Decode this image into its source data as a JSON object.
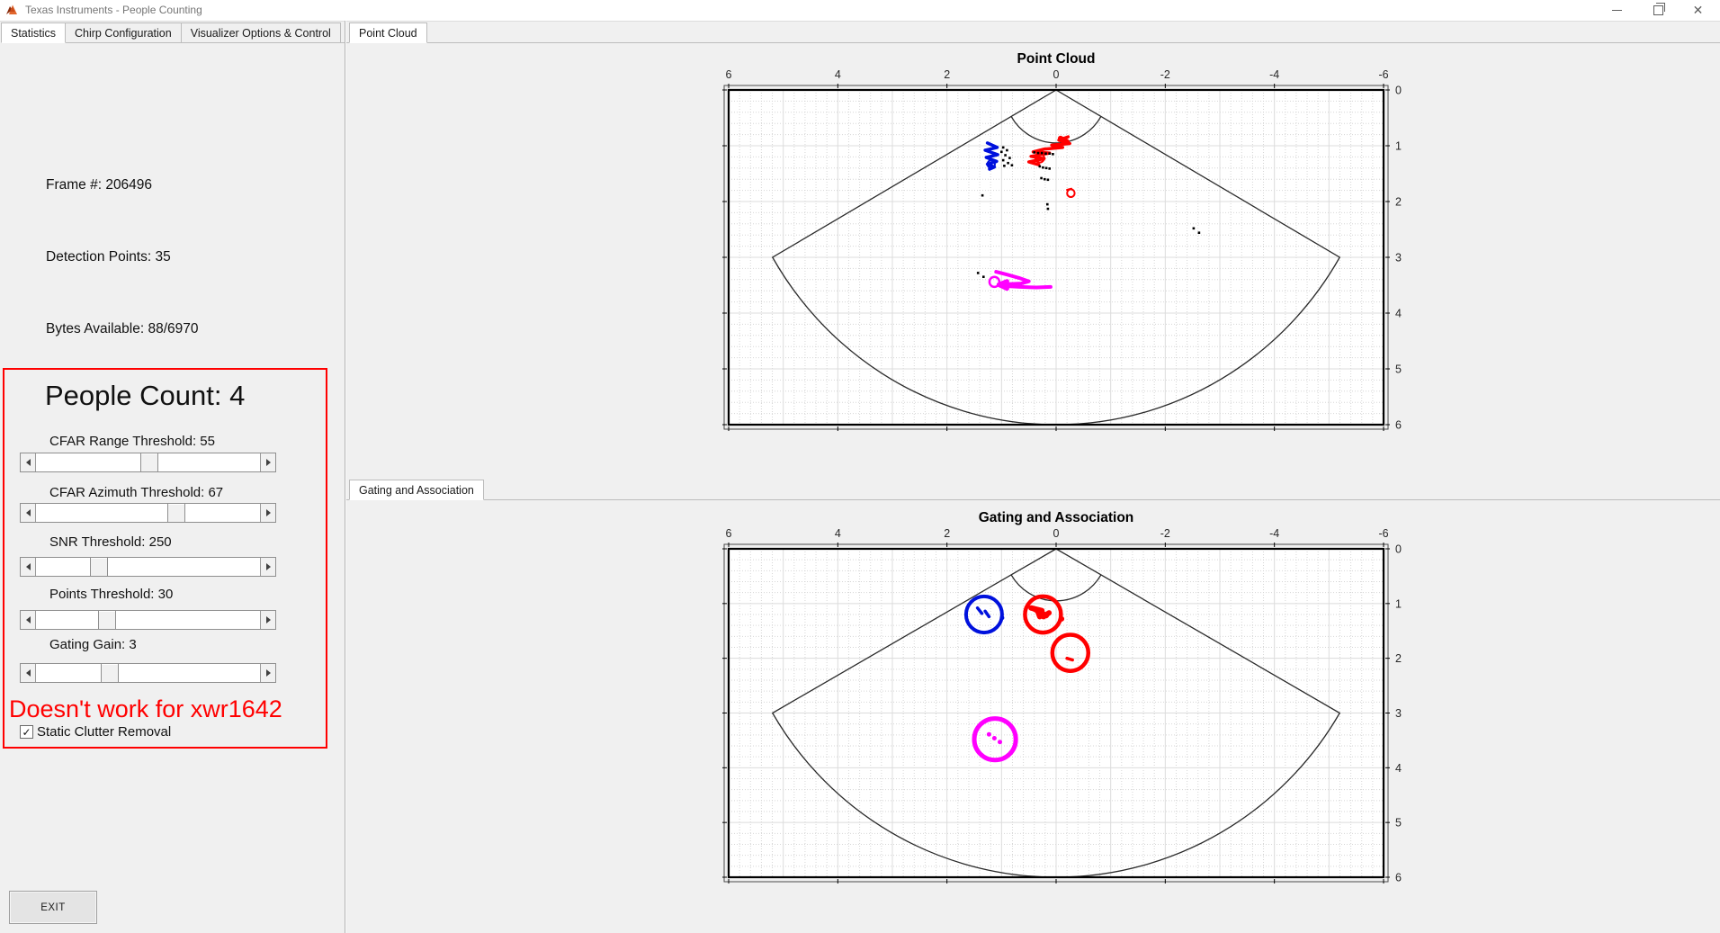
{
  "window": {
    "title": "Texas Instruments - People Counting",
    "icon": "matlab-logo-icon"
  },
  "left_panel": {
    "tabs": [
      {
        "label": "Statistics",
        "active": true
      },
      {
        "label": "Chirp Configuration",
        "active": false
      },
      {
        "label": "Visualizer Options & Control",
        "active": false
      }
    ],
    "stats": {
      "frame": "Frame #: 206496",
      "detections": "Detection Points: 35",
      "bytes": "Bytes Available: 88/6970"
    },
    "people_count": "People Count: 4",
    "sliders": [
      {
        "label": "CFAR Range Threshold: 55",
        "value": 55,
        "fraction": 0.5
      },
      {
        "label": "CFAR Azimuth Threshold: 67",
        "value": 67,
        "fraction": 0.63
      },
      {
        "label": "SNR Threshold: 250",
        "value": 250,
        "fraction": 0.26
      },
      {
        "label": "Points Threshold: 30",
        "value": 30,
        "fraction": 0.3
      },
      {
        "label": "Gating Gain: 3",
        "value": 3,
        "fraction": 0.31
      }
    ],
    "warning": "Doesn't work for xwr1642",
    "checkbox": {
      "label": "Static Clutter Removal",
      "checked": true,
      "glyph": "✓"
    },
    "exit_label": "EXIT"
  },
  "right_panel": {
    "top_tab": "Point Cloud",
    "bottom_tab": "Gating and Association"
  },
  "colors": {
    "track_blue": "#0011DD",
    "track_red": "#FF0000",
    "track_magenta": "#FF00FF",
    "detections": "#000000",
    "warning_red": "#FF0000",
    "grid_major": "#dcdcdc",
    "grid_minor": "#d6d6d6",
    "wedge": "#2b2b2b"
  },
  "chart_data": [
    {
      "type": "scatter",
      "title": "Point Cloud",
      "xlabel": "",
      "ylabel": "",
      "xlim": [
        6,
        -6
      ],
      "ylim": [
        0,
        6
      ],
      "x_ticks": [
        6,
        4,
        2,
        0,
        -2,
        -4,
        -6
      ],
      "y_ticks": [
        0,
        1,
        2,
        3,
        4,
        5,
        6
      ],
      "grid": "major+minor",
      "minor_step": 0.2,
      "fov_deg": 120,
      "range_max_m": 6,
      "near_arc_m": 0.95,
      "series": [
        {
          "name": "blue-track-trail",
          "kind": "trail",
          "color": "#0011DD",
          "width": 3.5,
          "points": [
            [
              1.26,
              0.95
            ],
            [
              1.08,
              1.03
            ],
            [
              1.3,
              1.08
            ],
            [
              1.07,
              1.16
            ],
            [
              1.28,
              1.21
            ],
            [
              1.09,
              1.28
            ],
            [
              1.26,
              1.33
            ],
            [
              1.13,
              1.38
            ],
            [
              1.22,
              1.42
            ]
          ]
        },
        {
          "name": "blue-track-ring",
          "kind": "ring",
          "color": "#0011DD",
          "width": 2,
          "center": [
            1.19,
            1.33
          ],
          "r": 0.07
        },
        {
          "name": "red-track-trail",
          "kind": "trail",
          "color": "#FF0000",
          "width": 3.5,
          "points": [
            [
              -0.22,
              0.84
            ],
            [
              -0.05,
              0.9
            ],
            [
              -0.25,
              0.96
            ],
            [
              0.08,
              0.99
            ],
            [
              -0.12,
              1.03
            ],
            [
              0.22,
              1.06
            ],
            [
              0.42,
              1.11
            ],
            [
              0.12,
              1.13
            ],
            [
              0.46,
              1.19
            ],
            [
              0.22,
              1.23
            ],
            [
              0.5,
              1.29
            ],
            [
              0.32,
              1.34
            ]
          ]
        },
        {
          "name": "red-track-flag",
          "kind": "trail",
          "color": "#FF0000",
          "width": 6,
          "points": [
            [
              -0.08,
              0.87
            ],
            [
              -0.2,
              0.93
            ]
          ]
        },
        {
          "name": "red-track-ring",
          "kind": "ring",
          "color": "#FF0000",
          "width": 2,
          "center": [
            0.3,
            1.22
          ],
          "r": 0.08
        },
        {
          "name": "red-lone-marker",
          "kind": "ring",
          "color": "#FF0000",
          "width": 2,
          "center": [
            -0.27,
            1.85
          ],
          "r": 0.07,
          "dashes": [
            [
              -0.2,
              1.79,
              -0.28,
              1.77
            ]
          ],
          "dash_width": 2
        },
        {
          "name": "magenta-track-trail",
          "kind": "trail",
          "color": "#FF00FF",
          "width": 4,
          "points": [
            [
              1.1,
              3.26
            ],
            [
              0.9,
              3.31
            ],
            [
              0.68,
              3.37
            ],
            [
              0.5,
              3.43
            ],
            [
              0.64,
              3.47
            ],
            [
              0.88,
              3.48
            ],
            [
              1.03,
              3.51
            ],
            [
              0.66,
              3.53
            ],
            [
              0.36,
              3.54
            ],
            [
              0.1,
              3.53
            ]
          ]
        },
        {
          "name": "magenta-arrowhead",
          "kind": "trail",
          "color": "#FF00FF",
          "width": 5,
          "points": [
            [
              0.9,
              3.43
            ],
            [
              1.05,
              3.49
            ],
            [
              0.9,
              3.56
            ]
          ]
        },
        {
          "name": "magenta-track-ring",
          "kind": "ring",
          "color": "#FF00FF",
          "width": 2.5,
          "center": [
            1.13,
            3.44
          ],
          "r": 0.09
        },
        {
          "name": "detection-points",
          "kind": "dots",
          "color": "#000000",
          "size": 2.6,
          "points": [
            [
              0.97,
              1.03
            ],
            [
              0.9,
              1.08
            ],
            [
              1.0,
              1.11
            ],
            [
              0.93,
              1.17
            ],
            [
              0.85,
              1.22
            ],
            [
              0.97,
              1.26
            ],
            [
              0.88,
              1.31
            ],
            [
              0.81,
              1.35
            ],
            [
              0.95,
              1.36
            ],
            [
              0.4,
              1.12
            ],
            [
              0.33,
              1.13
            ],
            [
              0.26,
              1.13
            ],
            [
              0.19,
              1.14
            ],
            [
              0.12,
              1.14
            ],
            [
              0.06,
              1.15
            ],
            [
              0.3,
              1.37
            ],
            [
              0.24,
              1.39
            ],
            [
              0.18,
              1.4
            ],
            [
              0.12,
              1.41
            ],
            [
              0.27,
              1.58
            ],
            [
              0.21,
              1.6
            ],
            [
              0.15,
              1.61
            ],
            [
              0.16,
              2.05
            ],
            [
              0.15,
              2.13
            ],
            [
              1.35,
              1.89
            ],
            [
              -2.52,
              2.48
            ],
            [
              -2.62,
              2.56
            ],
            [
              1.43,
              3.28
            ],
            [
              1.33,
              3.35
            ]
          ]
        }
      ]
    },
    {
      "type": "scatter",
      "title": "Gating and Association",
      "xlabel": "",
      "ylabel": "",
      "xlim": [
        6,
        -6
      ],
      "ylim": [
        0,
        6
      ],
      "x_ticks": [
        6,
        4,
        2,
        0,
        -2,
        -4,
        -6
      ],
      "y_ticks": [
        0,
        1,
        2,
        3,
        4,
        5,
        6
      ],
      "grid": "major+minor",
      "minor_step": 0.2,
      "fov_deg": 120,
      "range_max_m": 6,
      "near_arc_m": 0.95,
      "series": [
        {
          "name": "blue-gate-circle",
          "kind": "ring",
          "color": "#0011DD",
          "width": 4,
          "center": [
            1.32,
            1.2
          ],
          "r": 0.33,
          "dashes": [
            [
              1.44,
              1.08,
              1.36,
              1.18
            ],
            [
              1.3,
              1.14,
              1.23,
              1.24
            ]
          ],
          "dash_width": 3.5,
          "mark_dots": [
            [
              0.99,
              1.26
            ]
          ],
          "mark_size": 5
        },
        {
          "name": "red-gate-circle-1",
          "kind": "ring",
          "color": "#FF0000",
          "width": 4.5,
          "center": [
            0.24,
            1.2
          ],
          "r": 0.33,
          "dashes": [
            [
              0.46,
              1.08,
              0.26,
              1.13
            ],
            [
              0.4,
              1.1,
              0.18,
              1.22
            ],
            [
              0.34,
              1.13,
              0.3,
              1.24
            ],
            [
              0.23,
              1.24,
              0.13,
              1.17
            ]
          ],
          "dash_width": 6,
          "mark_dots": [
            [
              -0.1,
              1.28
            ]
          ],
          "mark_size": 6
        },
        {
          "name": "red-gate-circle-2",
          "kind": "ring",
          "color": "#FF0000",
          "width": 4.5,
          "center": [
            -0.26,
            1.9
          ],
          "r": 0.33,
          "dashes": [
            [
              -0.2,
              2.0,
              -0.3,
              2.03
            ]
          ],
          "dash_width": 3.5
        },
        {
          "name": "magenta-gate-circle",
          "kind": "ring",
          "color": "#FF00FF",
          "width": 5,
          "center": [
            1.12,
            3.48
          ],
          "r": 0.38,
          "mark_dots": [
            [
              1.23,
              3.39
            ],
            [
              1.13,
              3.46
            ],
            [
              1.03,
              3.53
            ]
          ],
          "mark_size": 5
        }
      ]
    }
  ]
}
